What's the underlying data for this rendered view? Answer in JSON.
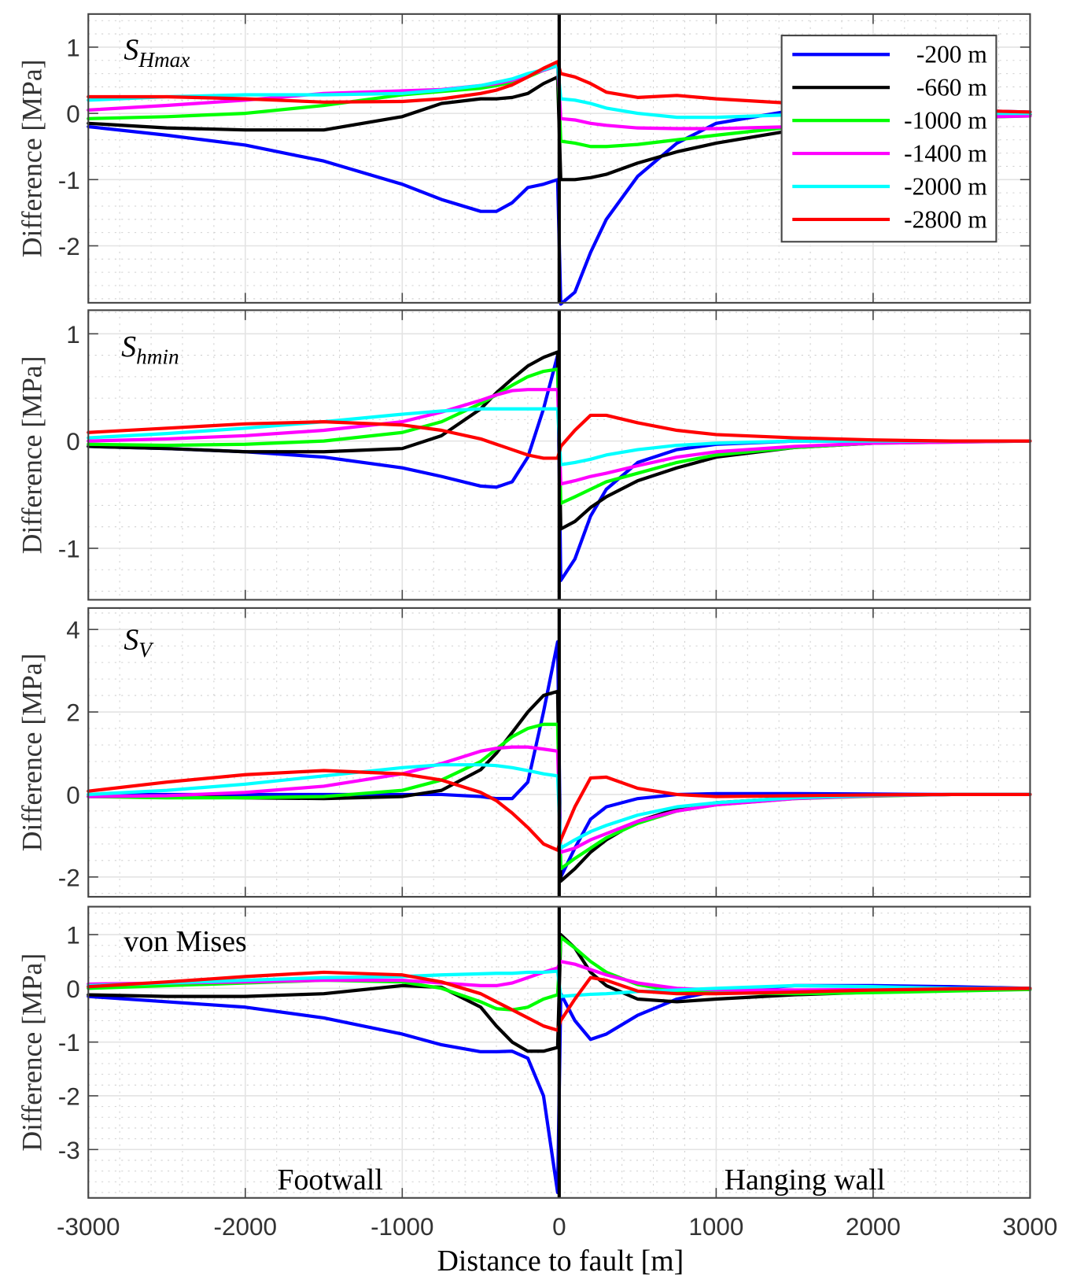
{
  "figure": {
    "xlabel": "Distance to fault [m]",
    "xlim": [
      -3000,
      3000
    ],
    "xticks": [
      -3000,
      -2000,
      -1000,
      0,
      1000,
      2000,
      3000
    ],
    "region_labels": {
      "left": "Footwall",
      "right": "Hanging wall"
    }
  },
  "legend": {
    "placement": "top-right of first panel",
    "entries": [
      {
        "label": "-200 m",
        "color": "#0000ff"
      },
      {
        "label": "-660 m",
        "color": "#000000"
      },
      {
        "label": "-1000 m",
        "color": "#00ff00"
      },
      {
        "label": "-1400 m",
        "color": "#ff00ff"
      },
      {
        "label": "-2000 m",
        "color": "#00ffff"
      },
      {
        "label": "-2800 m",
        "color": "#ff0000"
      }
    ]
  },
  "chart_data": [
    {
      "type": "line",
      "annotation": {
        "base": "S",
        "sub": "Hmax"
      },
      "ylabel": "Difference [MPa]",
      "ylim": [
        -2.86,
        1.5
      ],
      "yticks": [
        -2,
        -1,
        0,
        1
      ],
      "grid": true,
      "x": [
        -3000,
        -2500,
        -2000,
        -1500,
        -1000,
        -750,
        -500,
        -400,
        -300,
        -200,
        -100,
        -10,
        10,
        100,
        200,
        300,
        500,
        750,
        1000,
        1500,
        2000,
        2500,
        3000
      ],
      "series": [
        {
          "name": "-200 m",
          "values": [
            -0.2,
            -0.33,
            -0.48,
            -0.72,
            -1.07,
            -1.3,
            -1.48,
            -1.48,
            -1.35,
            -1.12,
            -1.07,
            -1.0,
            -2.88,
            -2.7,
            -2.1,
            -1.6,
            -0.95,
            -0.45,
            -0.15,
            0.05,
            0.08,
            0.05,
            0.02
          ]
        },
        {
          "name": "-660 m",
          "values": [
            -0.15,
            -0.22,
            -0.25,
            -0.25,
            -0.05,
            0.15,
            0.22,
            0.22,
            0.24,
            0.3,
            0.45,
            0.55,
            -1.0,
            -1.0,
            -0.97,
            -0.92,
            -0.75,
            -0.58,
            -0.45,
            -0.25,
            -0.1,
            -0.04,
            -0.02
          ]
        },
        {
          "name": "-1000 m",
          "values": [
            -0.08,
            -0.05,
            0.0,
            0.12,
            0.28,
            0.33,
            0.38,
            0.42,
            0.47,
            0.55,
            0.65,
            0.72,
            -0.42,
            -0.45,
            -0.5,
            -0.5,
            -0.47,
            -0.4,
            -0.33,
            -0.2,
            -0.12,
            -0.07,
            -0.04
          ]
        },
        {
          "name": "-1400 m",
          "values": [
            0.05,
            0.12,
            0.2,
            0.3,
            0.34,
            0.36,
            0.42,
            0.45,
            0.5,
            0.58,
            0.65,
            0.72,
            -0.08,
            -0.1,
            -0.15,
            -0.18,
            -0.22,
            -0.23,
            -0.23,
            -0.2,
            -0.12,
            -0.06,
            -0.04
          ]
        },
        {
          "name": "-2000 m",
          "values": [
            0.2,
            0.25,
            0.28,
            0.28,
            0.3,
            0.35,
            0.42,
            0.47,
            0.52,
            0.6,
            0.66,
            0.72,
            0.22,
            0.2,
            0.15,
            0.08,
            0.0,
            -0.06,
            -0.06,
            -0.02,
            0.0,
            0.0,
            0.0
          ]
        },
        {
          "name": "-2800 m",
          "values": [
            0.25,
            0.25,
            0.22,
            0.17,
            0.18,
            0.22,
            0.3,
            0.35,
            0.43,
            0.55,
            0.68,
            0.78,
            0.6,
            0.55,
            0.45,
            0.32,
            0.24,
            0.27,
            0.22,
            0.15,
            0.1,
            0.05,
            0.02
          ]
        }
      ]
    },
    {
      "type": "line",
      "annotation": {
        "base": "S",
        "sub": "hmin"
      },
      "ylabel": "Difference [MPa]",
      "ylim": [
        -1.48,
        1.22
      ],
      "yticks": [
        -1,
        0,
        1
      ],
      "grid": true,
      "x": [
        -3000,
        -2500,
        -2000,
        -1500,
        -1000,
        -750,
        -500,
        -400,
        -300,
        -200,
        -100,
        -10,
        10,
        100,
        200,
        300,
        500,
        750,
        1000,
        1500,
        2000,
        2500,
        3000
      ],
      "series": [
        {
          "name": "-200 m",
          "values": [
            -0.05,
            -0.07,
            -0.1,
            -0.15,
            -0.25,
            -0.33,
            -0.42,
            -0.43,
            -0.38,
            -0.15,
            0.3,
            0.8,
            -1.3,
            -1.1,
            -0.7,
            -0.45,
            -0.2,
            -0.08,
            -0.03,
            0,
            0,
            0,
            0
          ]
        },
        {
          "name": "-660 m",
          "values": [
            -0.05,
            -0.07,
            -0.1,
            -0.1,
            -0.07,
            0.05,
            0.3,
            0.45,
            0.58,
            0.7,
            0.78,
            0.83,
            -0.82,
            -0.75,
            -0.62,
            -0.52,
            -0.37,
            -0.25,
            -0.15,
            -0.06,
            -0.02,
            0,
            0
          ]
        },
        {
          "name": "-1000 m",
          "values": [
            -0.03,
            -0.04,
            -0.03,
            0.0,
            0.08,
            0.18,
            0.35,
            0.43,
            0.52,
            0.6,
            0.65,
            0.67,
            -0.58,
            -0.52,
            -0.45,
            -0.38,
            -0.3,
            -0.2,
            -0.13,
            -0.06,
            -0.02,
            -0.01,
            0
          ]
        },
        {
          "name": "-1400 m",
          "values": [
            0.0,
            0.02,
            0.05,
            0.1,
            0.18,
            0.27,
            0.38,
            0.43,
            0.47,
            0.48,
            0.48,
            0.48,
            -0.4,
            -0.37,
            -0.33,
            -0.3,
            -0.23,
            -0.15,
            -0.1,
            -0.05,
            -0.02,
            -0.01,
            0
          ]
        },
        {
          "name": "-2000 m",
          "values": [
            0.03,
            0.07,
            0.12,
            0.18,
            0.25,
            0.28,
            0.3,
            0.3,
            0.3,
            0.3,
            0.3,
            0.3,
            -0.22,
            -0.2,
            -0.17,
            -0.13,
            -0.08,
            -0.04,
            -0.02,
            0,
            0,
            0,
            0
          ]
        },
        {
          "name": "-2800 m",
          "values": [
            0.08,
            0.12,
            0.16,
            0.18,
            0.15,
            0.1,
            0.02,
            -0.03,
            -0.08,
            -0.13,
            -0.16,
            -0.16,
            -0.05,
            0.1,
            0.24,
            0.24,
            0.17,
            0.1,
            0.06,
            0.03,
            0.01,
            0,
            0
          ]
        }
      ]
    },
    {
      "type": "line",
      "annotation": {
        "base": "S",
        "sub": "V"
      },
      "ylabel": "Difference [MPa]",
      "ylim": [
        -2.48,
        4.52
      ],
      "yticks": [
        -2,
        0,
        2,
        4
      ],
      "grid": true,
      "x": [
        -3000,
        -2500,
        -2000,
        -1500,
        -1000,
        -750,
        -500,
        -400,
        -300,
        -200,
        -100,
        -10,
        10,
        100,
        200,
        300,
        500,
        750,
        1000,
        1500,
        2000,
        2500,
        3000
      ],
      "series": [
        {
          "name": "-200 m",
          "values": [
            0,
            0,
            0,
            0,
            0,
            0,
            -0.05,
            -0.1,
            -0.1,
            0.3,
            2.0,
            3.7,
            -2.0,
            -1.3,
            -0.6,
            -0.3,
            -0.1,
            0,
            0.02,
            0.02,
            0.01,
            0,
            0
          ]
        },
        {
          "name": "-660 m",
          "values": [
            -0.05,
            -0.05,
            -0.08,
            -0.1,
            -0.05,
            0.1,
            0.6,
            1.0,
            1.5,
            2.0,
            2.4,
            2.5,
            -2.1,
            -1.8,
            -1.4,
            -1.1,
            -0.65,
            -0.35,
            -0.2,
            -0.08,
            -0.02,
            0,
            0
          ]
        },
        {
          "name": "-1000 m",
          "values": [
            -0.05,
            -0.08,
            -0.08,
            -0.05,
            0.1,
            0.35,
            0.8,
            1.1,
            1.4,
            1.6,
            1.7,
            1.7,
            -1.8,
            -1.55,
            -1.3,
            -1.05,
            -0.7,
            -0.4,
            -0.25,
            -0.1,
            -0.04,
            0,
            0
          ]
        },
        {
          "name": "-1400 m",
          "values": [
            -0.05,
            -0.03,
            0.05,
            0.2,
            0.5,
            0.75,
            1.05,
            1.12,
            1.15,
            1.15,
            1.1,
            1.05,
            -1.4,
            -1.3,
            -1.1,
            -0.95,
            -0.65,
            -0.4,
            -0.25,
            -0.1,
            -0.03,
            0,
            0
          ]
        },
        {
          "name": "-2000 m",
          "values": [
            0,
            0.1,
            0.25,
            0.45,
            0.65,
            0.72,
            0.72,
            0.7,
            0.65,
            0.58,
            0.5,
            0.45,
            -1.3,
            -1.1,
            -0.9,
            -0.75,
            -0.5,
            -0.3,
            -0.2,
            -0.08,
            -0.02,
            0,
            0
          ]
        },
        {
          "name": "-2800 m",
          "values": [
            0.08,
            0.3,
            0.48,
            0.58,
            0.5,
            0.35,
            0.05,
            -0.15,
            -0.45,
            -0.8,
            -1.2,
            -1.35,
            -1.1,
            -0.3,
            0.4,
            0.42,
            0.15,
            0.0,
            -0.05,
            -0.03,
            -0.01,
            0,
            0
          ]
        }
      ]
    },
    {
      "type": "line",
      "annotation": {
        "base": "von Mises",
        "sub": ""
      },
      "ylabel": "Difference [MPa]",
      "ylim": [
        -3.9,
        1.52
      ],
      "yticks": [
        -3,
        -2,
        -1,
        0,
        1
      ],
      "grid": true,
      "x": [
        -3000,
        -2500,
        -2000,
        -1500,
        -1000,
        -750,
        -500,
        -400,
        -300,
        -200,
        -100,
        -10,
        10,
        100,
        200,
        300,
        500,
        750,
        1000,
        1500,
        2000,
        2500,
        3000
      ],
      "series": [
        {
          "name": "-200 m",
          "values": [
            -0.15,
            -0.25,
            -0.35,
            -0.55,
            -0.85,
            -1.05,
            -1.18,
            -1.18,
            -1.17,
            -1.3,
            -2.0,
            -3.8,
            -0.1,
            -0.6,
            -0.95,
            -0.85,
            -0.5,
            -0.2,
            -0.05,
            0.05,
            0.05,
            0.03,
            0
          ]
        },
        {
          "name": "-660 m",
          "values": [
            -0.12,
            -0.15,
            -0.15,
            -0.1,
            0.05,
            0.02,
            -0.35,
            -0.7,
            -1.0,
            -1.17,
            -1.17,
            -1.1,
            1.0,
            0.75,
            0.3,
            0.05,
            -0.2,
            -0.25,
            -0.2,
            -0.12,
            -0.07,
            -0.03,
            -0.02
          ]
        },
        {
          "name": "-1000 m",
          "values": [
            0.0,
            0.05,
            0.1,
            0.15,
            0.12,
            0.0,
            -0.25,
            -0.38,
            -0.4,
            -0.35,
            -0.2,
            -0.12,
            0.95,
            0.75,
            0.5,
            0.3,
            0.07,
            -0.05,
            -0.08,
            -0.1,
            -0.08,
            -0.05,
            -0.02
          ]
        },
        {
          "name": "-1400 m",
          "values": [
            0.08,
            0.1,
            0.12,
            0.15,
            0.15,
            0.1,
            0.05,
            0.05,
            0.1,
            0.2,
            0.3,
            0.38,
            0.5,
            0.45,
            0.35,
            0.25,
            0.1,
            0.0,
            -0.03,
            -0.03,
            -0.02,
            -0.01,
            0
          ]
        },
        {
          "name": "-2000 m",
          "values": [
            0.05,
            0.1,
            0.15,
            0.2,
            0.22,
            0.25,
            0.27,
            0.28,
            0.28,
            0.3,
            0.3,
            0.32,
            -0.15,
            -0.13,
            -0.11,
            -0.1,
            -0.06,
            -0.03,
            0.0,
            0.05,
            0.03,
            0.0,
            0
          ]
        },
        {
          "name": "-2800 m",
          "values": [
            0.03,
            0.12,
            0.22,
            0.3,
            0.25,
            0.12,
            -0.1,
            -0.25,
            -0.4,
            -0.55,
            -0.7,
            -0.78,
            -0.6,
            -0.2,
            0.2,
            0.15,
            -0.05,
            -0.1,
            -0.1,
            -0.07,
            -0.03,
            -0.01,
            0
          ]
        }
      ]
    }
  ]
}
